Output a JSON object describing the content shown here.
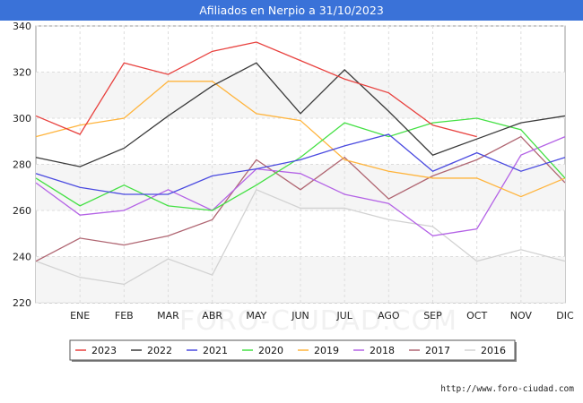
{
  "title": "Afiliados en Nerpio a 31/10/2023",
  "footer": "http://www.foro-ciudad.com",
  "watermark": "FORO-CIUDAD.COM",
  "chart_data": {
    "type": "line",
    "title": "Afiliados en Nerpio a 31/10/2023",
    "categories": [
      "",
      "ENE",
      "FEB",
      "MAR",
      "ABR",
      "MAY",
      "JUN",
      "JUL",
      "AGO",
      "SEP",
      "OCT",
      "NOV",
      "DIC"
    ],
    "ylim": [
      220,
      340
    ],
    "yticks": [
      220,
      240,
      260,
      280,
      300,
      320,
      340
    ],
    "grid": "horizontal",
    "legend_position": "bottom",
    "series": [
      {
        "name": "2023",
        "color": "#e8413e",
        "values": [
          301,
          293,
          324,
          319,
          329,
          333,
          325,
          317,
          311,
          297,
          292,
          null,
          null
        ]
      },
      {
        "name": "2022",
        "color": "#3a3a3a",
        "values": [
          283,
          279,
          287,
          301,
          314,
          324,
          302,
          321,
          303,
          284,
          291,
          298,
          301
        ]
      },
      {
        "name": "2021",
        "color": "#4a4ae0",
        "values": [
          276,
          270,
          267,
          267,
          275,
          278,
          282,
          288,
          293,
          277,
          285,
          277,
          283
        ]
      },
      {
        "name": "2020",
        "color": "#44e044",
        "values": [
          274,
          262,
          271,
          262,
          260,
          271,
          283,
          298,
          292,
          298,
          300,
          295,
          274
        ]
      },
      {
        "name": "2019",
        "color": "#ffb43c",
        "values": [
          292,
          297,
          300,
          316,
          316,
          302,
          299,
          282,
          277,
          274,
          274,
          266,
          274
        ]
      },
      {
        "name": "2018",
        "color": "#b463e6",
        "values": [
          272,
          258,
          260,
          269,
          260,
          278,
          276,
          267,
          263,
          249,
          252,
          284,
          292
        ]
      },
      {
        "name": "2017",
        "color": "#b06672",
        "values": [
          238,
          248,
          245,
          249,
          256,
          282,
          269,
          283,
          265,
          275,
          282,
          292,
          272
        ]
      },
      {
        "name": "2016",
        "color": "#d2d2d2",
        "values": [
          238,
          231,
          228,
          239,
          232,
          269,
          261,
          261,
          256,
          253,
          238,
          243,
          238
        ]
      }
    ]
  }
}
